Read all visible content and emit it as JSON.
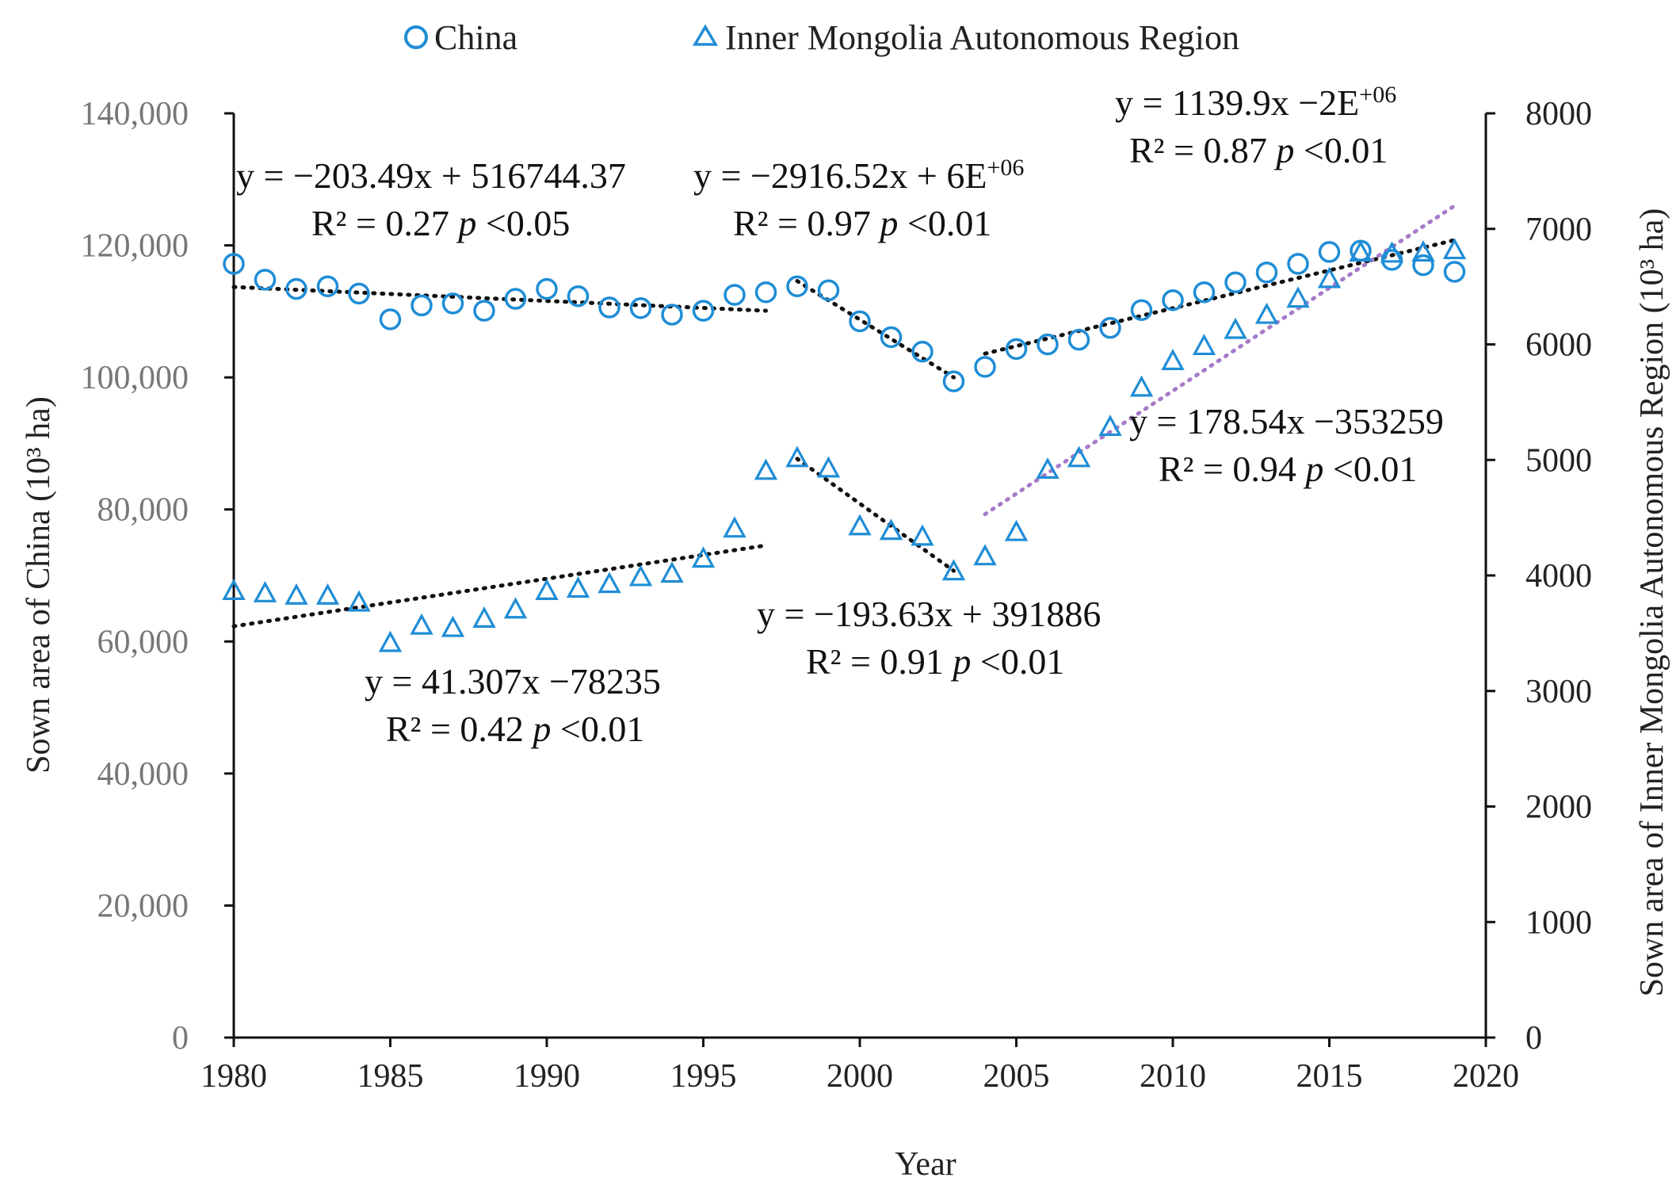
{
  "chart_data": {
    "type": "scatter",
    "xlabel": "Year",
    "ylabel_left": "Sown area of China (10³ ha)",
    "ylabel_right": "Sown area of Inner Mongolia Autonomous Region (10³ ha)",
    "xlim": [
      1980,
      2020
    ],
    "ylim_left": [
      0,
      140000
    ],
    "ylim_right": [
      0,
      8000
    ],
    "x_ticks": [
      "1980",
      "1985",
      "1990",
      "1995",
      "2000",
      "2005",
      "2010",
      "2015",
      "2020"
    ],
    "y_left_ticks": [
      "0",
      "20,000",
      "40,000",
      "60,000",
      "80,000",
      "100,000",
      "120,000",
      "140,000"
    ],
    "y_right_ticks": [
      "0",
      "1000",
      "2000",
      "3000",
      "4000",
      "5000",
      "6000",
      "7000",
      "8000"
    ],
    "legend": [
      {
        "label": "China",
        "marker": "circle"
      },
      {
        "label": "Inner Mongolia Autonomous Region",
        "marker": "triangle"
      }
    ],
    "series": [
      {
        "name": "China",
        "axis": "left",
        "marker": "circle",
        "color": "#1f8dd6",
        "x": [
          1980,
          1981,
          1982,
          1983,
          1984,
          1985,
          1986,
          1987,
          1988,
          1989,
          1990,
          1991,
          1992,
          1993,
          1994,
          1995,
          1996,
          1997,
          1998,
          1999,
          2000,
          2001,
          2002,
          2003,
          2004,
          2005,
          2006,
          2007,
          2008,
          2009,
          2010,
          2011,
          2012,
          2013,
          2014,
          2015,
          2016,
          2017,
          2018,
          2019
        ],
        "values": [
          117200,
          114800,
          113400,
          113800,
          112700,
          108800,
          110900,
          111200,
          110100,
          111900,
          113400,
          112300,
          110600,
          110500,
          109500,
          110100,
          112500,
          112900,
          113800,
          113200,
          108500,
          106100,
          103900,
          99400,
          101600,
          104300,
          105000,
          105700,
          107500,
          110200,
          111700,
          112900,
          114400,
          115900,
          117200,
          119000,
          119200,
          117800,
          117000,
          116000
        ]
      },
      {
        "name": "Inner Mongolia Autonomous Region",
        "axis": "right",
        "marker": "triangle",
        "color": "#1f8dd6",
        "x": [
          1980,
          1981,
          1982,
          1983,
          1984,
          1985,
          1986,
          1987,
          1988,
          1989,
          1990,
          1991,
          1992,
          1993,
          1994,
          1995,
          1996,
          1997,
          1998,
          1999,
          2000,
          2001,
          2002,
          2003,
          2004,
          2005,
          2006,
          2007,
          2008,
          2009,
          2010,
          2011,
          2012,
          2013,
          2014,
          2015,
          2016,
          2017,
          2018,
          2019
        ],
        "values": [
          3860,
          3840,
          3820,
          3820,
          3760,
          3410,
          3560,
          3540,
          3620,
          3700,
          3860,
          3880,
          3920,
          3980,
          4010,
          4140,
          4400,
          4900,
          5010,
          4920,
          4420,
          4380,
          4330,
          4030,
          4160,
          4370,
          4910,
          5010,
          5280,
          5620,
          5850,
          5980,
          6120,
          6250,
          6390,
          6560,
          6790,
          6780,
          6790,
          6810
        ]
      }
    ],
    "trendlines": [
      {
        "series": "China",
        "x_start": 1980,
        "x_end": 1997,
        "y_start": 113700,
        "y_end": 110100,
        "style": "dotted",
        "color": "#111111"
      },
      {
        "series": "China",
        "x_start": 1998,
        "x_end": 2003,
        "y_start": 114600,
        "y_end": 100000,
        "style": "dotted",
        "color": "#111111"
      },
      {
        "series": "China",
        "x_start": 2004,
        "x_end": 2019,
        "y_start": 103600,
        "y_end": 120800,
        "style": "dotted",
        "color": "#111111"
      },
      {
        "series": "Inner Mongolia Autonomous Region",
        "x_start": 1980,
        "x_end": 1997,
        "y_start": 3560,
        "y_end": 4260,
        "style": "dotted",
        "color": "#111111"
      },
      {
        "series": "Inner Mongolia Autonomous Region",
        "x_start": 1998,
        "x_end": 2003,
        "y_start": 5010,
        "y_end": 4040,
        "style": "dotted",
        "color": "#111111"
      },
      {
        "series": "Inner Mongolia Autonomous Region",
        "x_start": 2004,
        "x_end": 2019,
        "y_start": 4530,
        "y_end": 7200,
        "style": "dotted",
        "color": "#a67ac9"
      }
    ],
    "annotations": [
      {
        "line1_pre": "y = −203.49x + 516744.37",
        "line1_sup": "",
        "line2_pre": "R² = 0.27 ",
        "line2_italic": "p",
        "line2_post": " <0.05"
      },
      {
        "line1_pre": "y = −2916.52x + 6E",
        "line1_sup": "+06",
        "line2_pre": "R² = 0.97 ",
        "line2_italic": "p",
        "line2_post": " <0.01"
      },
      {
        "line1_pre": "y = 1139.9x −2E",
        "line1_sup": "+06",
        "line2_pre": "R² = 0.87 ",
        "line2_italic": "p",
        "line2_post": " <0.01"
      },
      {
        "line1_pre": "y = 41.307x −78235",
        "line1_sup": "",
        "line2_pre": "R² = 0.42 ",
        "line2_italic": "p",
        "line2_post": " <0.01"
      },
      {
        "line1_pre": "y = −193.63x + 391886",
        "line1_sup": "",
        "line2_pre": "R² = 0.91 ",
        "line2_italic": "p",
        "line2_post": " <0.01"
      },
      {
        "line1_pre": "y = 178.54x −353259",
        "line1_sup": "",
        "line2_pre": "R² = 0.94 ",
        "line2_italic": "p",
        "line2_post": " <0.01"
      }
    ]
  }
}
